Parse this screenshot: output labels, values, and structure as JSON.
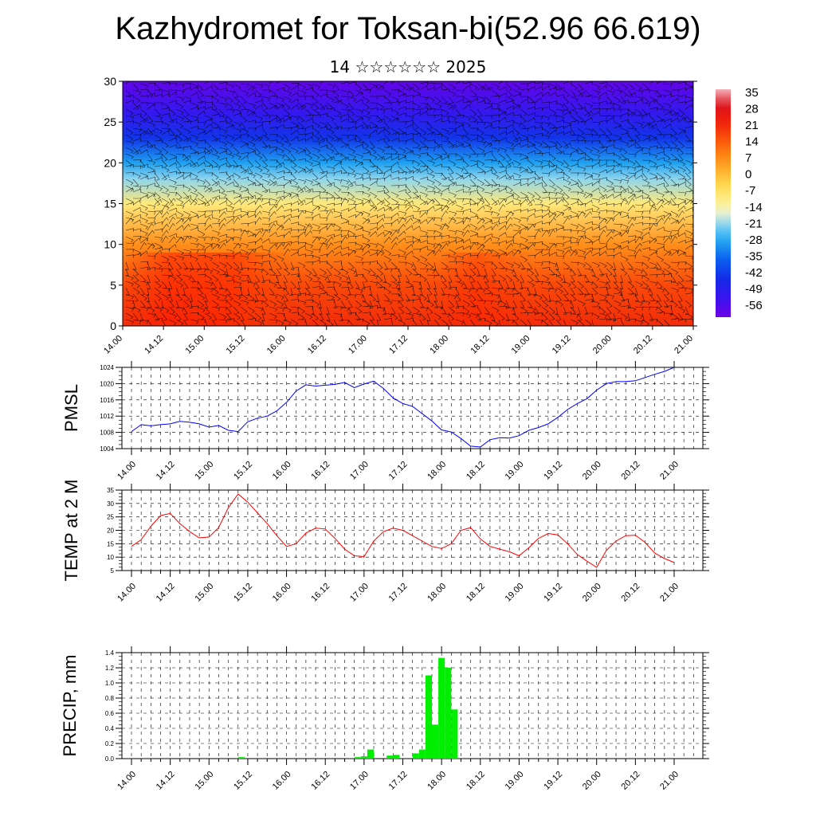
{
  "title": "Kazhydromet for Toksan-bi(52.96 66.619)",
  "subtitle": "14 ☆☆☆☆☆☆ 2025",
  "time_ticks": [
    "14.00",
    "14.12",
    "15.00",
    "15.12",
    "16.00",
    "16.12",
    "17.00",
    "17.12",
    "18.00",
    "18.12",
    "19.00",
    "19.12",
    "20.00",
    "20.12",
    "21.00"
  ],
  "colors": {
    "pmsl_line": "#0000ff",
    "temp_line": "#ff0000",
    "precip_bar": "#00ee00"
  },
  "chart_data": [
    {
      "type": "heatmap",
      "name": "Temperature cross-section with wind barbs",
      "ylim": [
        0,
        30
      ],
      "y_ticks": [
        0,
        5,
        10,
        15,
        20,
        25,
        30
      ],
      "x_ticks": [
        "14.00",
        "14.12",
        "15.00",
        "15.12",
        "16.00",
        "16.12",
        "17.00",
        "17.12",
        "18.00",
        "18.12",
        "19.00",
        "19.12",
        "20.00",
        "20.12",
        "21.00"
      ],
      "colorbar_labels": [
        "35",
        "28",
        "21",
        "14",
        "7",
        "0",
        "-7",
        "-14",
        "-21",
        "-28",
        "-35",
        "-42",
        "-49",
        "-56"
      ],
      "colorbar_range": [
        -60,
        38
      ],
      "temperature_profile": [
        {
          "level": 0,
          "value": 22
        },
        {
          "level": 5,
          "value": 18
        },
        {
          "level": 10,
          "value": 8
        },
        {
          "level": 15,
          "value": -8
        },
        {
          "level": 18,
          "value": -20
        },
        {
          "level": 20,
          "value": -28
        },
        {
          "level": 23,
          "value": -42
        },
        {
          "level": 26,
          "value": -50
        },
        {
          "level": 30,
          "value": -58
        }
      ]
    },
    {
      "type": "line",
      "ylabel": "PMSL",
      "ylim": [
        1004,
        1024
      ],
      "y_ticks": [
        1004,
        1008,
        1012,
        1016,
        1020,
        1024
      ],
      "x_ticks": [
        "14.00",
        "14.12",
        "15.00",
        "15.12",
        "16.00",
        "16.12",
        "17.00",
        "17.12",
        "18.00",
        "18.12",
        "19.00",
        "19.12",
        "20.00",
        "20.12",
        "21.00"
      ],
      "series": [
        {
          "values": [
            1008.2,
            1009.9,
            1009.6,
            1009.9,
            1010.1,
            1010.7,
            1010.5,
            1010.1,
            1009.3,
            1009.7,
            1008.5,
            1008.2,
            1010.6,
            1011.5,
            1012.0,
            1013.3,
            1015.4,
            1018.2,
            1019.7,
            1019.4,
            1019.6,
            1019.8,
            1020.3,
            1019.0,
            1019.9,
            1020.6,
            1018.8,
            1016.5,
            1015.1,
            1014.4,
            1012.6,
            1010.8,
            1008.6,
            1008.1,
            1006.5,
            1004.6,
            1004.4,
            1006.2,
            1006.7,
            1006.6,
            1007.2,
            1008.5,
            1009.2,
            1010.1,
            1011.7,
            1013.6,
            1015.1,
            1016.3,
            1018.4,
            1020.0,
            1020.5,
            1020.5,
            1020.7,
            1021.5,
            1022.3,
            1023.0,
            1024.0
          ]
        }
      ]
    },
    {
      "type": "line",
      "ylabel": "TEMP at 2 M",
      "ylim": [
        5,
        35
      ],
      "y_ticks": [
        5,
        10,
        15,
        20,
        25,
        30,
        35
      ],
      "x_ticks": [
        "14.00",
        "14.12",
        "15.00",
        "15.12",
        "16.00",
        "16.12",
        "17.00",
        "17.12",
        "18.00",
        "18.12",
        "19.00",
        "19.12",
        "20.00",
        "20.12",
        "21.00"
      ],
      "series": [
        {
          "values": [
            14.0,
            16.5,
            21.5,
            25.5,
            26.3,
            22.5,
            19.5,
            17.2,
            17.5,
            21.0,
            28.5,
            33.5,
            30.5,
            26.5,
            22.5,
            18.0,
            14.0,
            15.0,
            19.0,
            20.8,
            20.5,
            17.0,
            13.0,
            10.5,
            10.2,
            16.0,
            19.5,
            20.8,
            20.0,
            18.0,
            16.0,
            14.0,
            13.2,
            15.0,
            20.0,
            21.0,
            16.8,
            14.0,
            13.0,
            12.0,
            10.5,
            13.5,
            17.0,
            18.8,
            18.3,
            15.0,
            11.0,
            8.5,
            6.2,
            12.5,
            16.0,
            18.0,
            18.2,
            15.5,
            11.5,
            9.5,
            8.0
          ]
        }
      ]
    },
    {
      "type": "bar",
      "ylabel": "PRECIP, mm",
      "ylim": [
        0,
        1.4
      ],
      "y_ticks": [
        "0.0",
        "0.2",
        "0.4",
        "0.6",
        "0.8",
        "1.0",
        "1.2",
        "1.4"
      ],
      "x_ticks": [
        "14.00",
        "14.12",
        "15.00",
        "15.12",
        "16.00",
        "16.12",
        "17.00",
        "17.12",
        "18.00",
        "18.12",
        "19.00",
        "19.12",
        "20.00",
        "20.12",
        "21.00"
      ],
      "values": [
        0,
        0,
        0,
        0,
        0,
        0,
        0,
        0,
        0,
        0,
        0,
        0,
        0,
        0,
        0,
        0,
        0,
        0.02,
        0,
        0,
        0,
        0,
        0,
        0,
        0,
        0,
        0,
        0,
        0,
        0,
        0,
        0,
        0,
        0,
        0.01,
        0.02,
        0.03,
        0.12,
        0,
        0,
        0.04,
        0.05,
        0,
        0,
        0.07,
        0.12,
        1.1,
        0.45,
        1.33,
        1.2,
        0.65,
        0,
        0,
        0,
        0,
        0,
        0,
        0,
        0,
        0,
        0,
        0,
        0,
        0,
        0,
        0,
        0,
        0,
        0,
        0,
        0,
        0,
        0,
        0,
        0,
        0,
        0,
        0,
        0,
        0,
        0,
        0,
        0,
        0,
        0
      ]
    }
  ]
}
